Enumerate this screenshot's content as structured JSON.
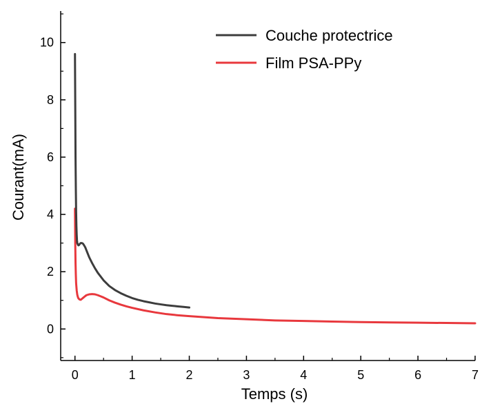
{
  "chart_data": {
    "type": "line",
    "title": "",
    "xlabel": "Temps (s)",
    "ylabel": "Courant(mA)",
    "xlim": [
      -0.25,
      7
    ],
    "ylim": [
      -1.1,
      11.1
    ],
    "xticks": [
      0,
      1,
      2,
      3,
      4,
      5,
      6,
      7
    ],
    "yticks": [
      0,
      2,
      4,
      6,
      8,
      10
    ],
    "x_tick_labels": [
      "0",
      "1",
      "2",
      "3",
      "4",
      "5",
      "6",
      "7"
    ],
    "y_tick_labels": [
      "0",
      "2",
      "4",
      "6",
      "8",
      "10"
    ],
    "grid": false,
    "legend_position": "top-right",
    "series": [
      {
        "name": "Couche protectrice",
        "color": "#3d3d3d",
        "x": [
          0.0,
          0.005,
          0.01,
          0.015,
          0.02,
          0.025,
          0.03,
          0.035,
          0.04,
          0.05,
          0.06,
          0.07,
          0.08,
          0.1,
          0.12,
          0.14,
          0.16,
          0.18,
          0.2,
          0.22,
          0.25,
          0.3,
          0.35,
          0.4,
          0.5,
          0.6,
          0.7,
          0.8,
          0.9,
          1.0,
          1.1,
          1.2,
          1.3,
          1.4,
          1.5,
          1.6,
          1.7,
          1.8,
          1.9,
          2.0
        ],
        "y": [
          9.6,
          7.8,
          6.0,
          4.9,
          4.1,
          3.6,
          3.3,
          3.1,
          3.0,
          2.95,
          2.92,
          2.93,
          2.96,
          3.0,
          3.0,
          2.98,
          2.92,
          2.85,
          2.75,
          2.65,
          2.5,
          2.3,
          2.12,
          1.96,
          1.7,
          1.5,
          1.36,
          1.25,
          1.16,
          1.08,
          1.02,
          0.97,
          0.93,
          0.89,
          0.86,
          0.83,
          0.81,
          0.79,
          0.77,
          0.75
        ]
      },
      {
        "name": "Film PSA-PPy",
        "color": "#e8383d",
        "x": [
          0.0,
          0.005,
          0.01,
          0.015,
          0.02,
          0.03,
          0.04,
          0.05,
          0.06,
          0.08,
          0.1,
          0.12,
          0.15,
          0.18,
          0.2,
          0.25,
          0.3,
          0.35,
          0.4,
          0.45,
          0.5,
          0.6,
          0.7,
          0.8,
          0.9,
          1.0,
          1.2,
          1.4,
          1.6,
          1.8,
          2.0,
          2.5,
          3.0,
          3.5,
          4.0,
          4.5,
          5.0,
          5.5,
          6.0,
          6.5,
          7.0
        ],
        "y": [
          4.2,
          3.0,
          2.3,
          1.9,
          1.6,
          1.35,
          1.2,
          1.12,
          1.07,
          1.03,
          1.02,
          1.05,
          1.1,
          1.15,
          1.18,
          1.21,
          1.22,
          1.21,
          1.18,
          1.14,
          1.1,
          1.0,
          0.92,
          0.85,
          0.79,
          0.74,
          0.65,
          0.58,
          0.52,
          0.48,
          0.45,
          0.38,
          0.34,
          0.3,
          0.28,
          0.26,
          0.24,
          0.23,
          0.22,
          0.21,
          0.2
        ]
      }
    ]
  }
}
